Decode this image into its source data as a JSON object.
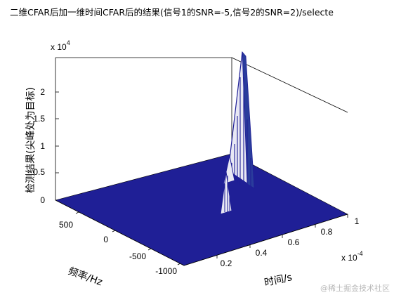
{
  "chart_data": {
    "type": "surface3d",
    "title": "二维CFAR后加一维时间CFAR后的结果(信号1的SNR=-5,信号2的SNR=2)/selecte",
    "zlabel": "检测结果(尖峰处为目标)",
    "xlabel": "时间/s",
    "ylabel": "频率/Hz",
    "z_exponent": "x 10",
    "z_exponent_power": "4",
    "x_exponent": "x 10",
    "x_exponent_power": "-4",
    "z_ticks": [
      "0",
      "0.5",
      "1",
      "1.5",
      "2"
    ],
    "x_ticks": [
      "0.2",
      "0.4",
      "0.6",
      "0.8",
      "1"
    ],
    "y_ticks": [
      "500",
      "0",
      "-500",
      "-1000"
    ],
    "zlim": [
      0,
      25000
    ],
    "xlim": [
      0,
      0.00011
    ],
    "ylim": [
      -1100,
      1000
    ],
    "surface_color": "#1f1f96",
    "spike_color": "#e8e8f4",
    "peaks": [
      {
        "t": 6e-05,
        "f": 200,
        "z": 25000
      },
      {
        "t": 4e-05,
        "f": 250,
        "z": 5000
      },
      {
        "t": 4e-05,
        "f": -400,
        "z": 1500
      }
    ]
  },
  "watermark": "@稀土掘金技术社区"
}
